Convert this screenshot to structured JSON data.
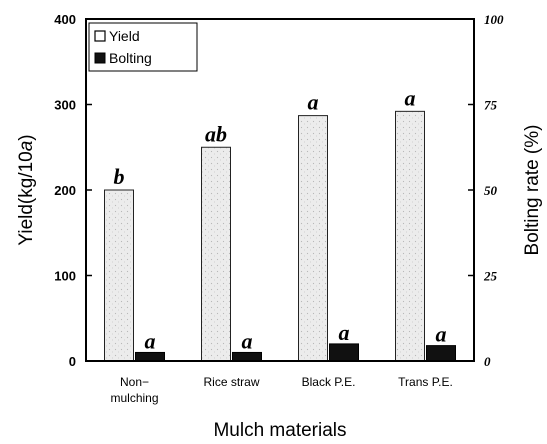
{
  "chart_data": {
    "type": "bar",
    "categories": [
      "Non-mulching",
      "Rice straw",
      "Black P.E.",
      "Trans P.E."
    ],
    "category_labels": [
      [
        "Non−",
        "mulching"
      ],
      [
        "Rice straw"
      ],
      [
        "Black P.E."
      ],
      [
        "Trans P.E."
      ]
    ],
    "series": [
      {
        "name": "Yield",
        "axis": "left",
        "values": [
          200,
          250,
          287,
          292
        ],
        "significance": [
          "b",
          "ab",
          "a",
          "a"
        ],
        "color": "#e8e8e8"
      },
      {
        "name": "Bolting",
        "axis": "right",
        "values": [
          2.5,
          2.5,
          5,
          4.5
        ],
        "significance": [
          "a",
          "a",
          "a",
          "a"
        ],
        "color": "#111111"
      }
    ],
    "xlabel": "Mulch materials",
    "ylabel_left": "Yield(kg/10a)",
    "ylabel_left_parts": [
      "Yield(kg/10",
      "a",
      ")"
    ],
    "ylabel_right": "Bolting rate (%)",
    "ylim_left": [
      0,
      400
    ],
    "ylim_right": [
      0,
      100
    ],
    "yticks_left": [
      0,
      100,
      200,
      300,
      400
    ],
    "yticks_right": [
      0,
      25,
      50,
      75,
      100
    ],
    "legend": {
      "placement": "top-left",
      "entries": [
        "Yield",
        "Bolting"
      ]
    },
    "grid": false
  }
}
